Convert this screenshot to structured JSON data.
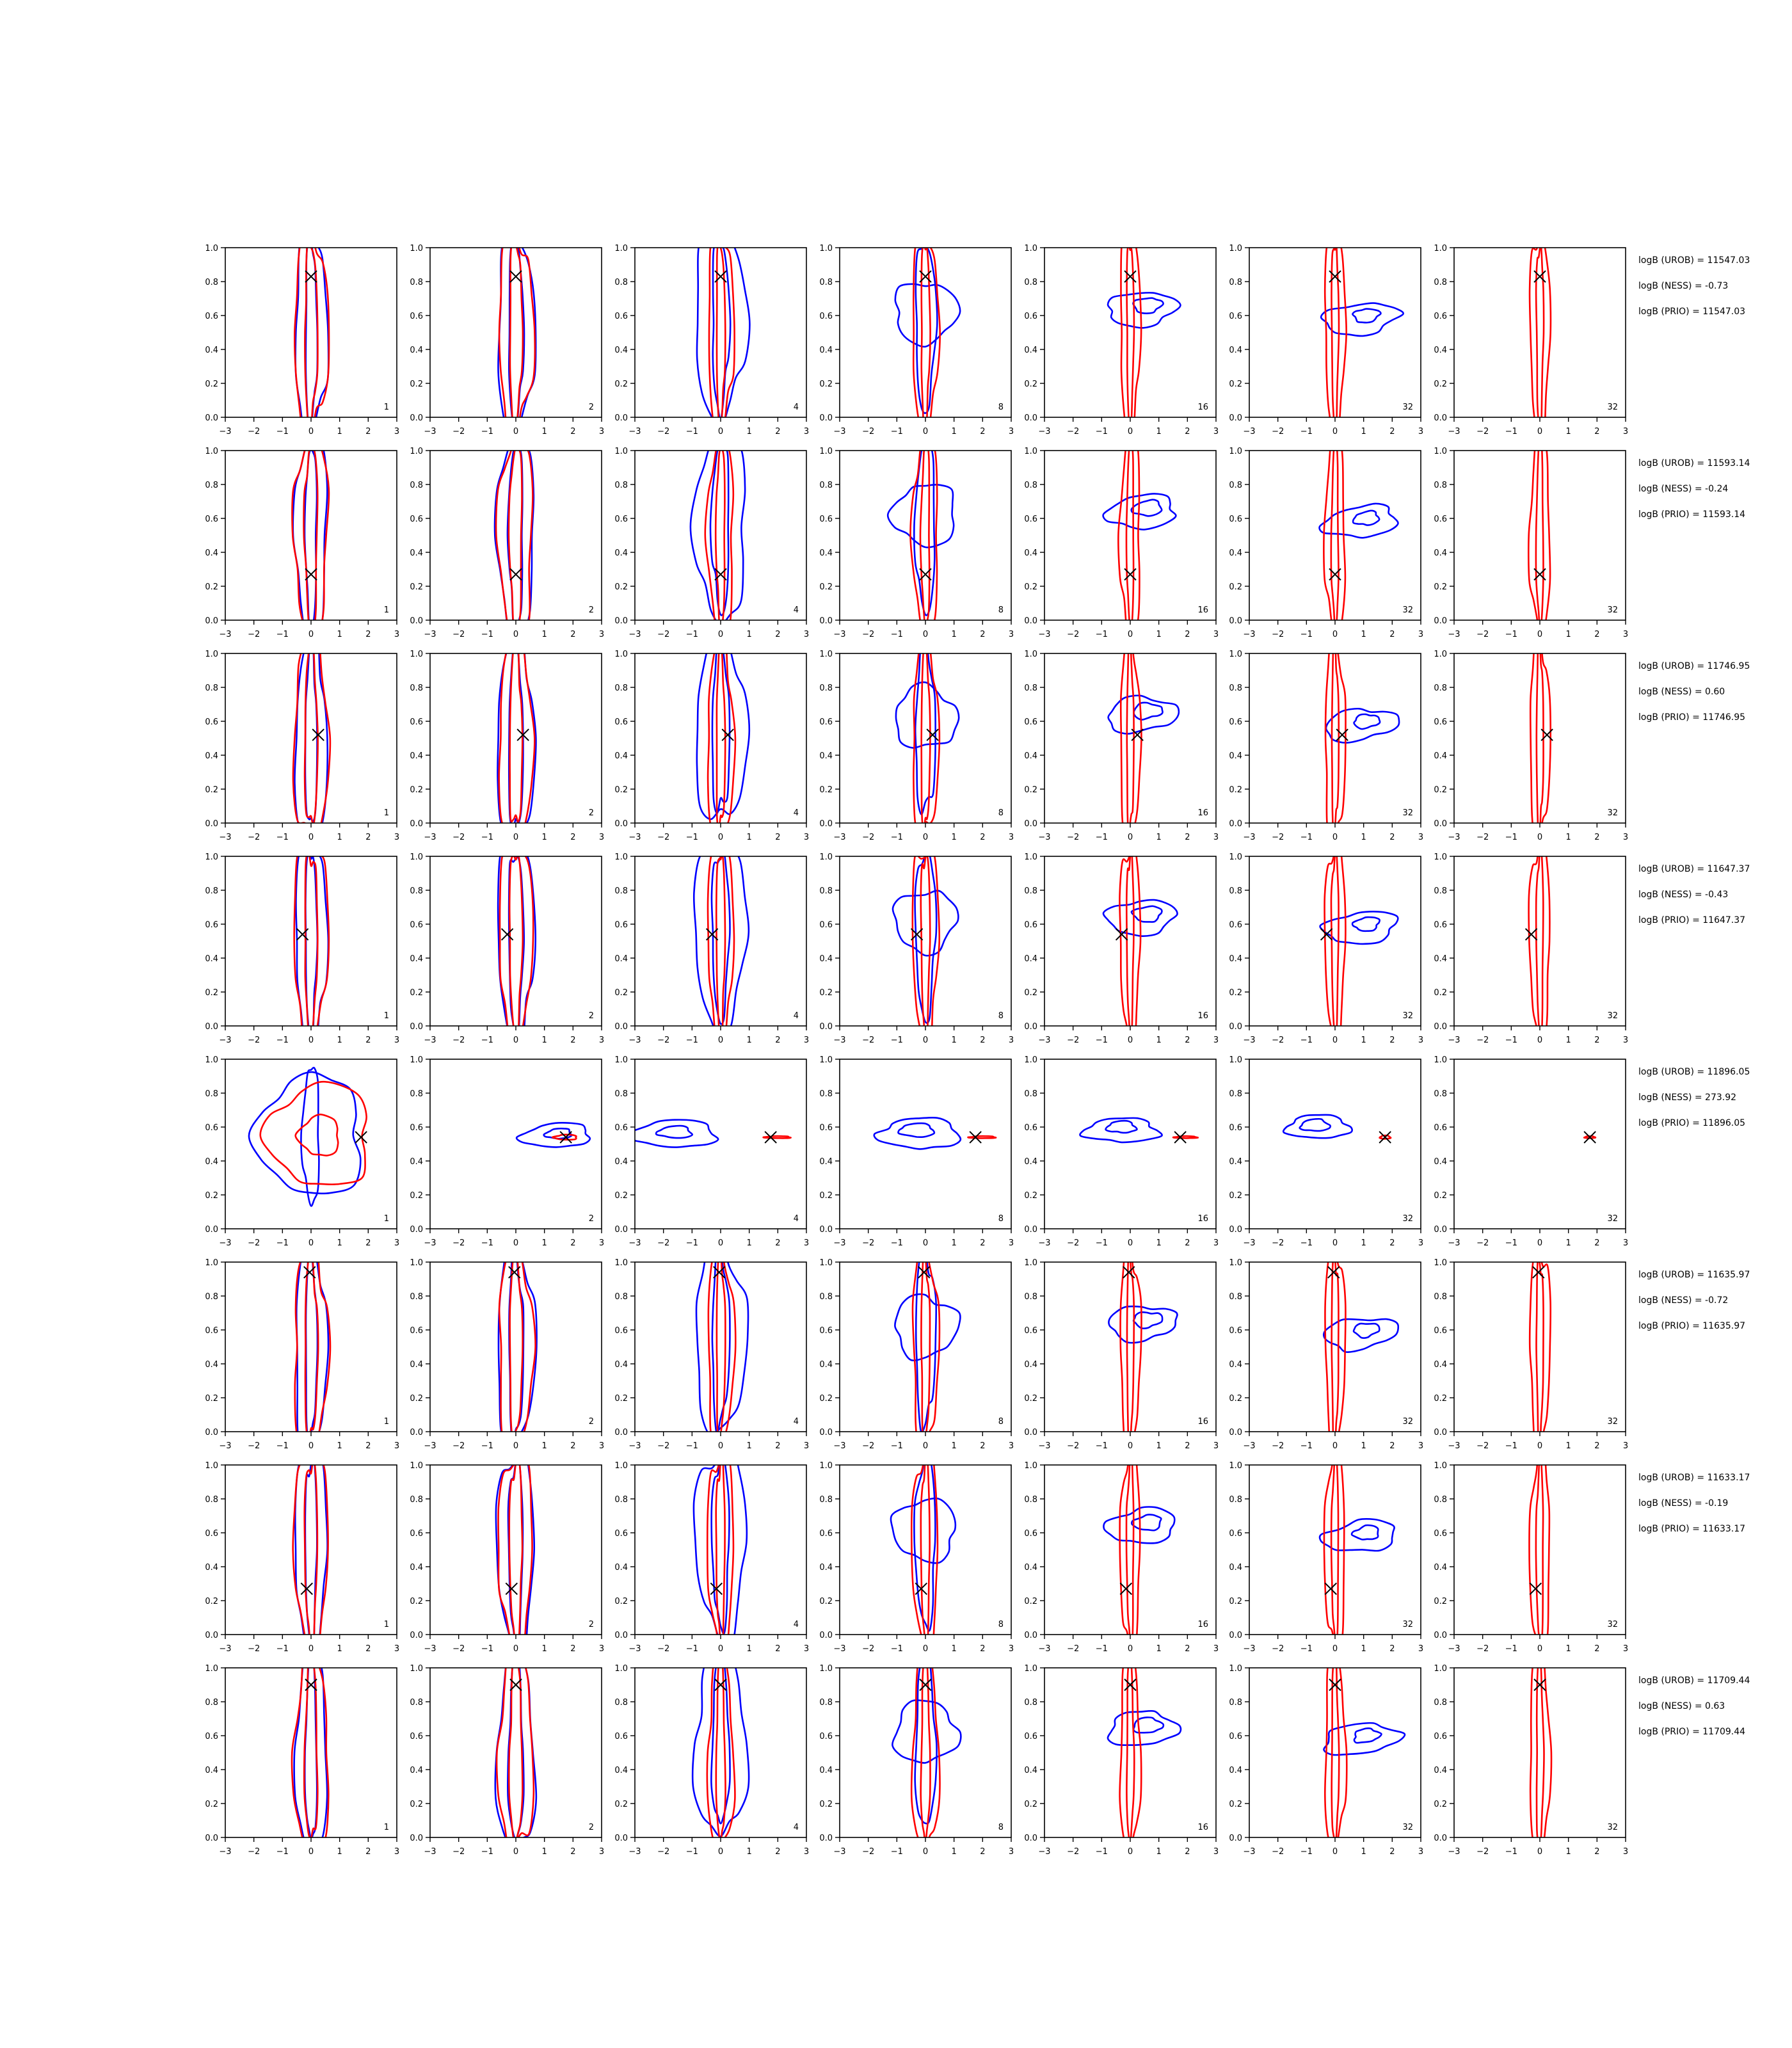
{
  "chart_data": {
    "type": "contour-grid",
    "rows": 8,
    "columns": 7,
    "xlim": [
      -3,
      3
    ],
    "ylim": [
      0,
      1
    ],
    "x_ticks": [
      "−3",
      "−2",
      "−1",
      "0",
      "1",
      "2",
      "3"
    ],
    "y_ticks": [
      "0.0",
      "0.2",
      "0.4",
      "0.6",
      "0.8",
      "1.0"
    ],
    "panel_labels": [
      "1",
      "2",
      "4",
      "8",
      "16",
      "32",
      "32"
    ],
    "colors": {
      "blue": "#0000ff",
      "red": "#ff0000",
      "marker": "#000000"
    },
    "series": [
      {
        "color": "blue"
      },
      {
        "color": "red"
      }
    ],
    "markers": [
      {
        "x": 0.0,
        "y": 0.83
      },
      {
        "x": 0.0,
        "y": 0.27
      },
      {
        "x": 0.25,
        "y": 0.52
      },
      {
        "x": -0.3,
        "y": 0.54
      },
      {
        "x": 1.75,
        "y": 0.54
      },
      {
        "x": -0.05,
        "y": 0.94
      },
      {
        "x": -0.15,
        "y": 0.27
      },
      {
        "x": 0.0,
        "y": 0.9
      }
    ],
    "annotations": [
      [
        "logB (UROB) = 11547.03",
        "logB (NESS) = -0.73",
        "logB (PRIO) = 11547.03"
      ],
      [
        "logB (UROB) = 11593.14",
        "logB (NESS) = -0.24",
        "logB (PRIO) = 11593.14"
      ],
      [
        "logB (UROB) = 11746.95",
        "logB (NESS) = 0.60",
        "logB (PRIO) = 11746.95"
      ],
      [
        "logB (UROB) = 11647.37",
        "logB (NESS) = -0.43",
        "logB (PRIO) = 11647.37"
      ],
      [
        "logB (UROB) = 11896.05",
        "logB (NESS) = 273.92",
        "logB (PRIO) = 11896.05"
      ],
      [
        "logB (UROB) = 11635.97",
        "logB (NESS) = -0.72",
        "logB (PRIO) = 11635.97"
      ],
      [
        "logB (UROB) = 11633.17",
        "logB (NESS) = -0.19",
        "logB (PRIO) = 11633.17"
      ],
      [
        "logB (UROB) = 11709.44",
        "logB (NESS) = 0.63",
        "logB (PRIO) = 11709.44"
      ]
    ]
  }
}
